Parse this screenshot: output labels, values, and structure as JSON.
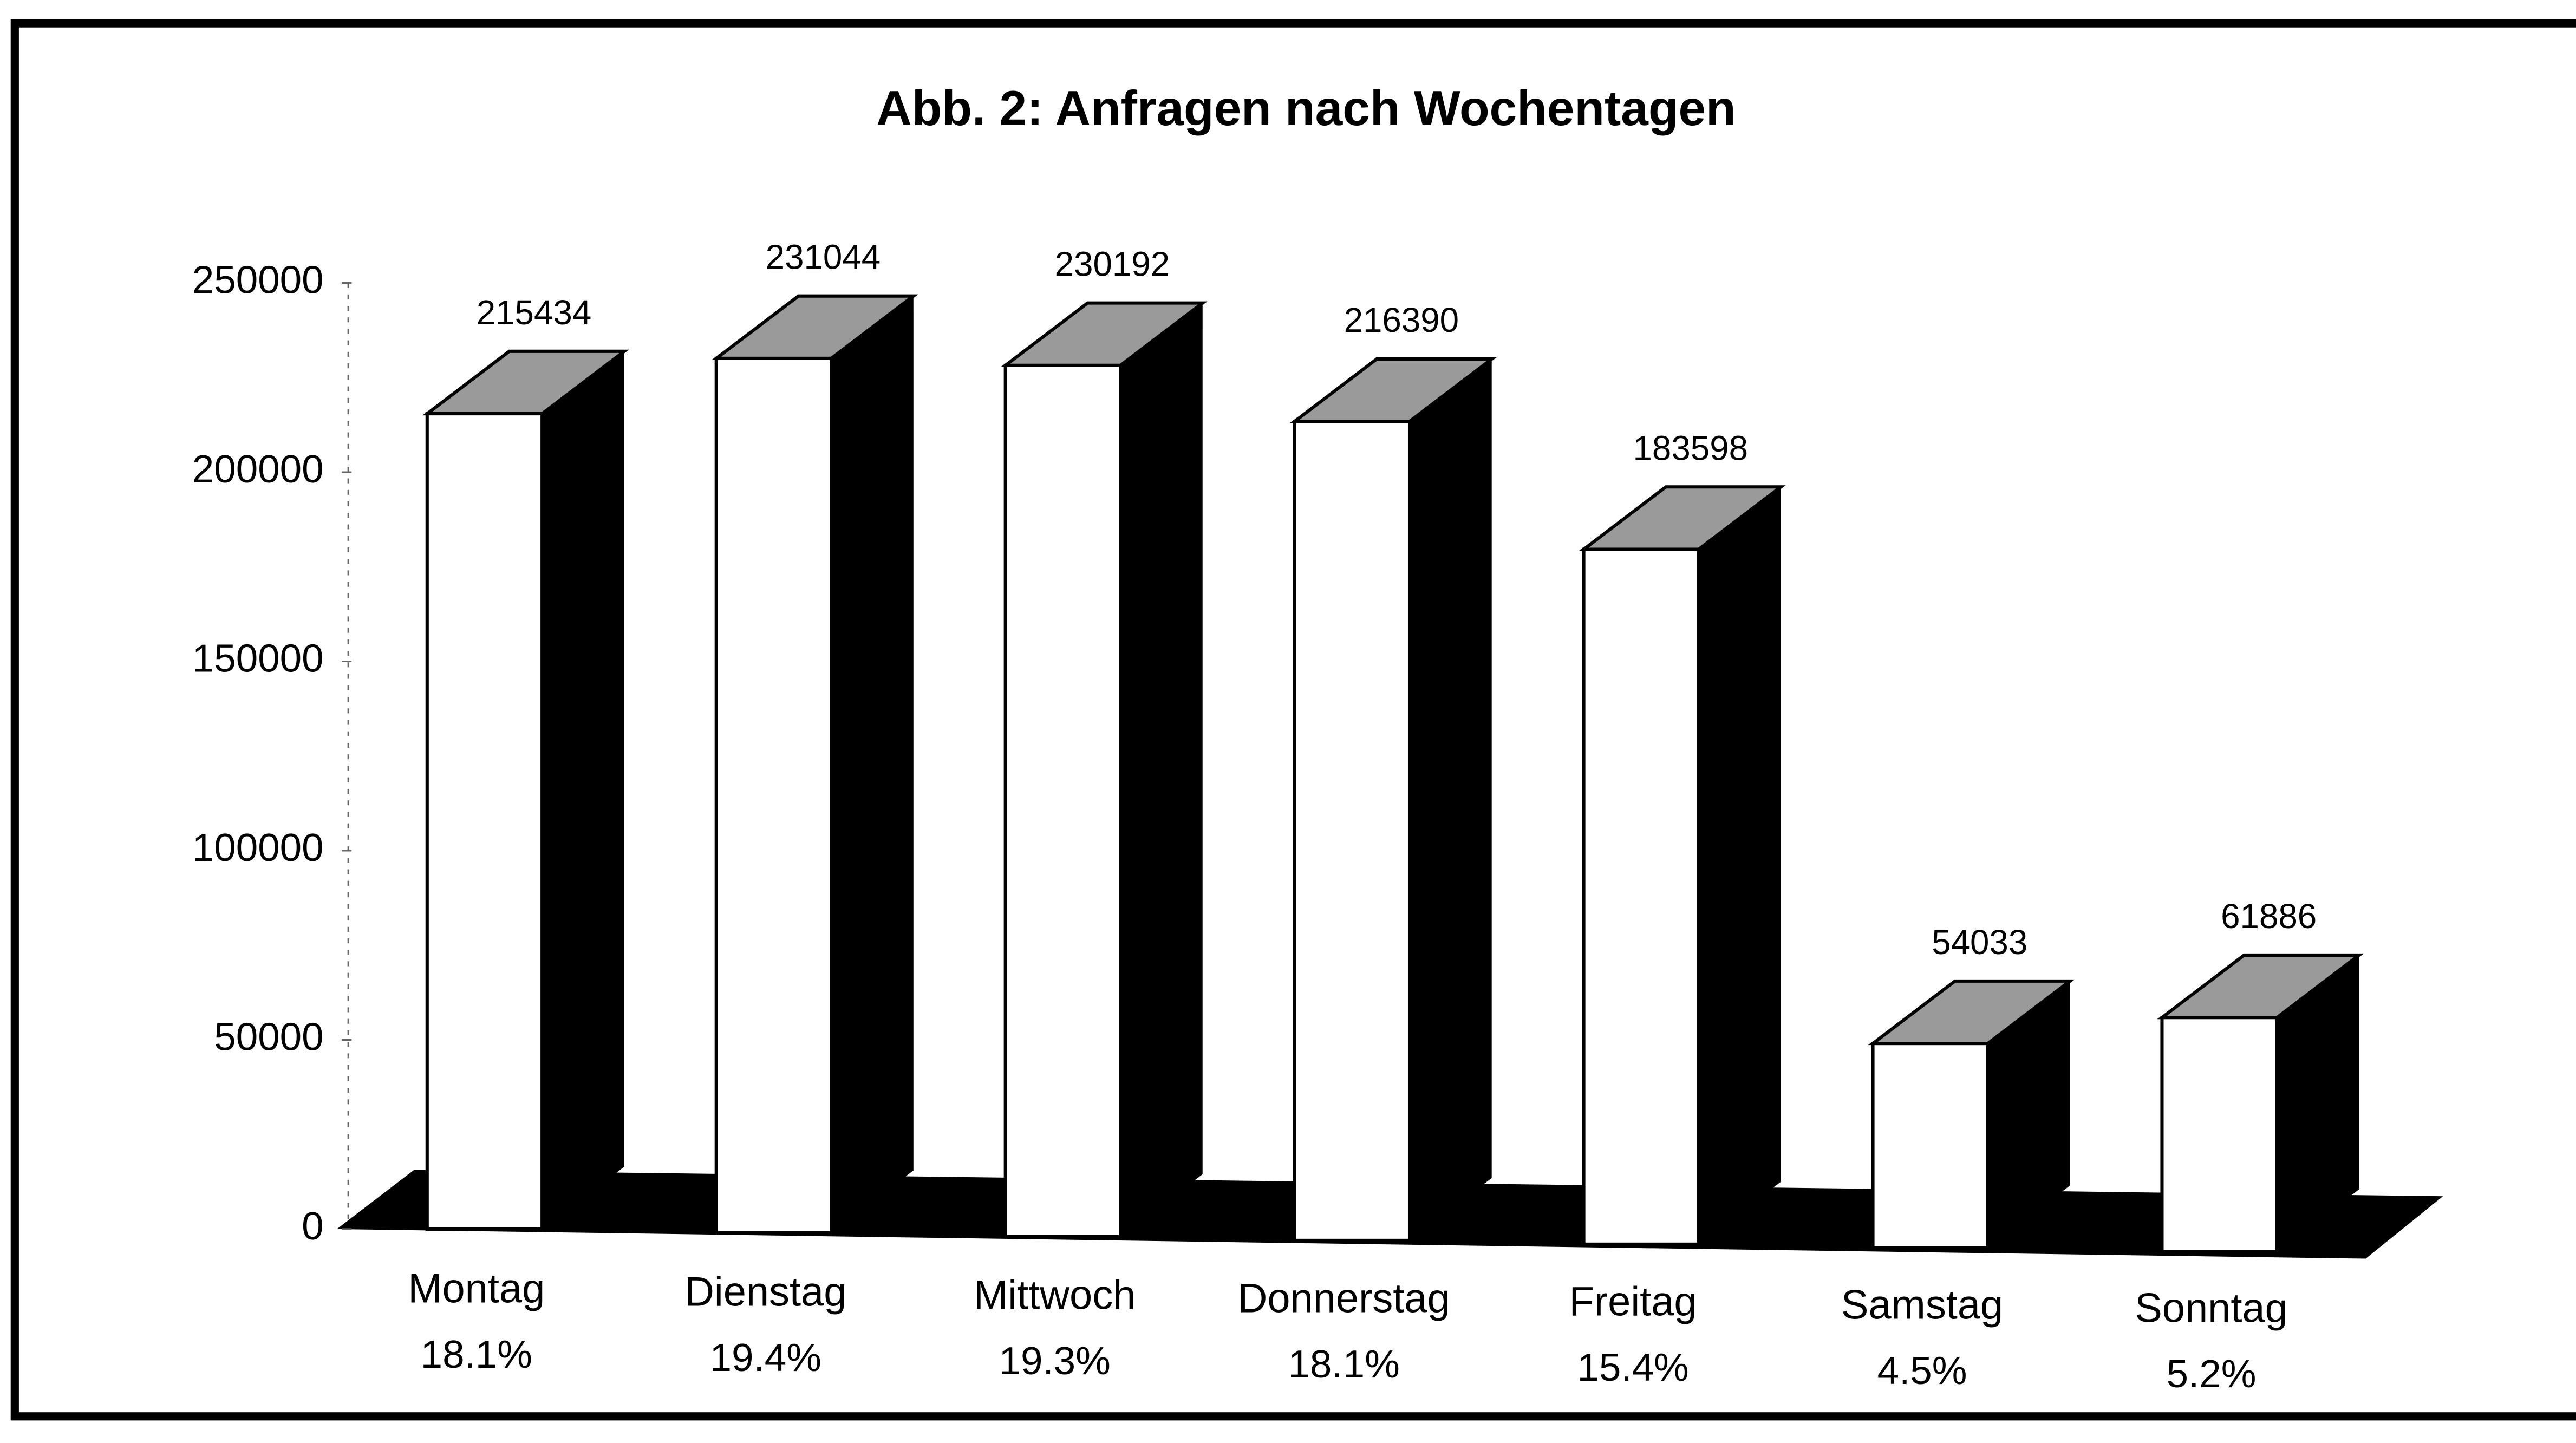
{
  "chart_data": {
    "type": "bar3d",
    "title": "Abb. 2: Anfragen nach Wochentagen",
    "categories": [
      "Montag",
      "Dienstag",
      "Mittwoch",
      "Donnerstag",
      "Freitag",
      "Samstag",
      "Sonntag"
    ],
    "category_notes": [
      "18.1%",
      "19.4%",
      "19.3%",
      "18.1%",
      "15.4%",
      "4.5%",
      "5.2%"
    ],
    "values": [
      215434,
      231044,
      230192,
      216390,
      183598,
      54033,
      61886
    ],
    "color": "#ffffff",
    "side_color": "#000000",
    "top_color": "#9a9a9a",
    "ylim": [
      0,
      250000
    ],
    "yticks": [
      0,
      50000,
      100000,
      150000,
      200000,
      250000
    ],
    "grid": false
  }
}
